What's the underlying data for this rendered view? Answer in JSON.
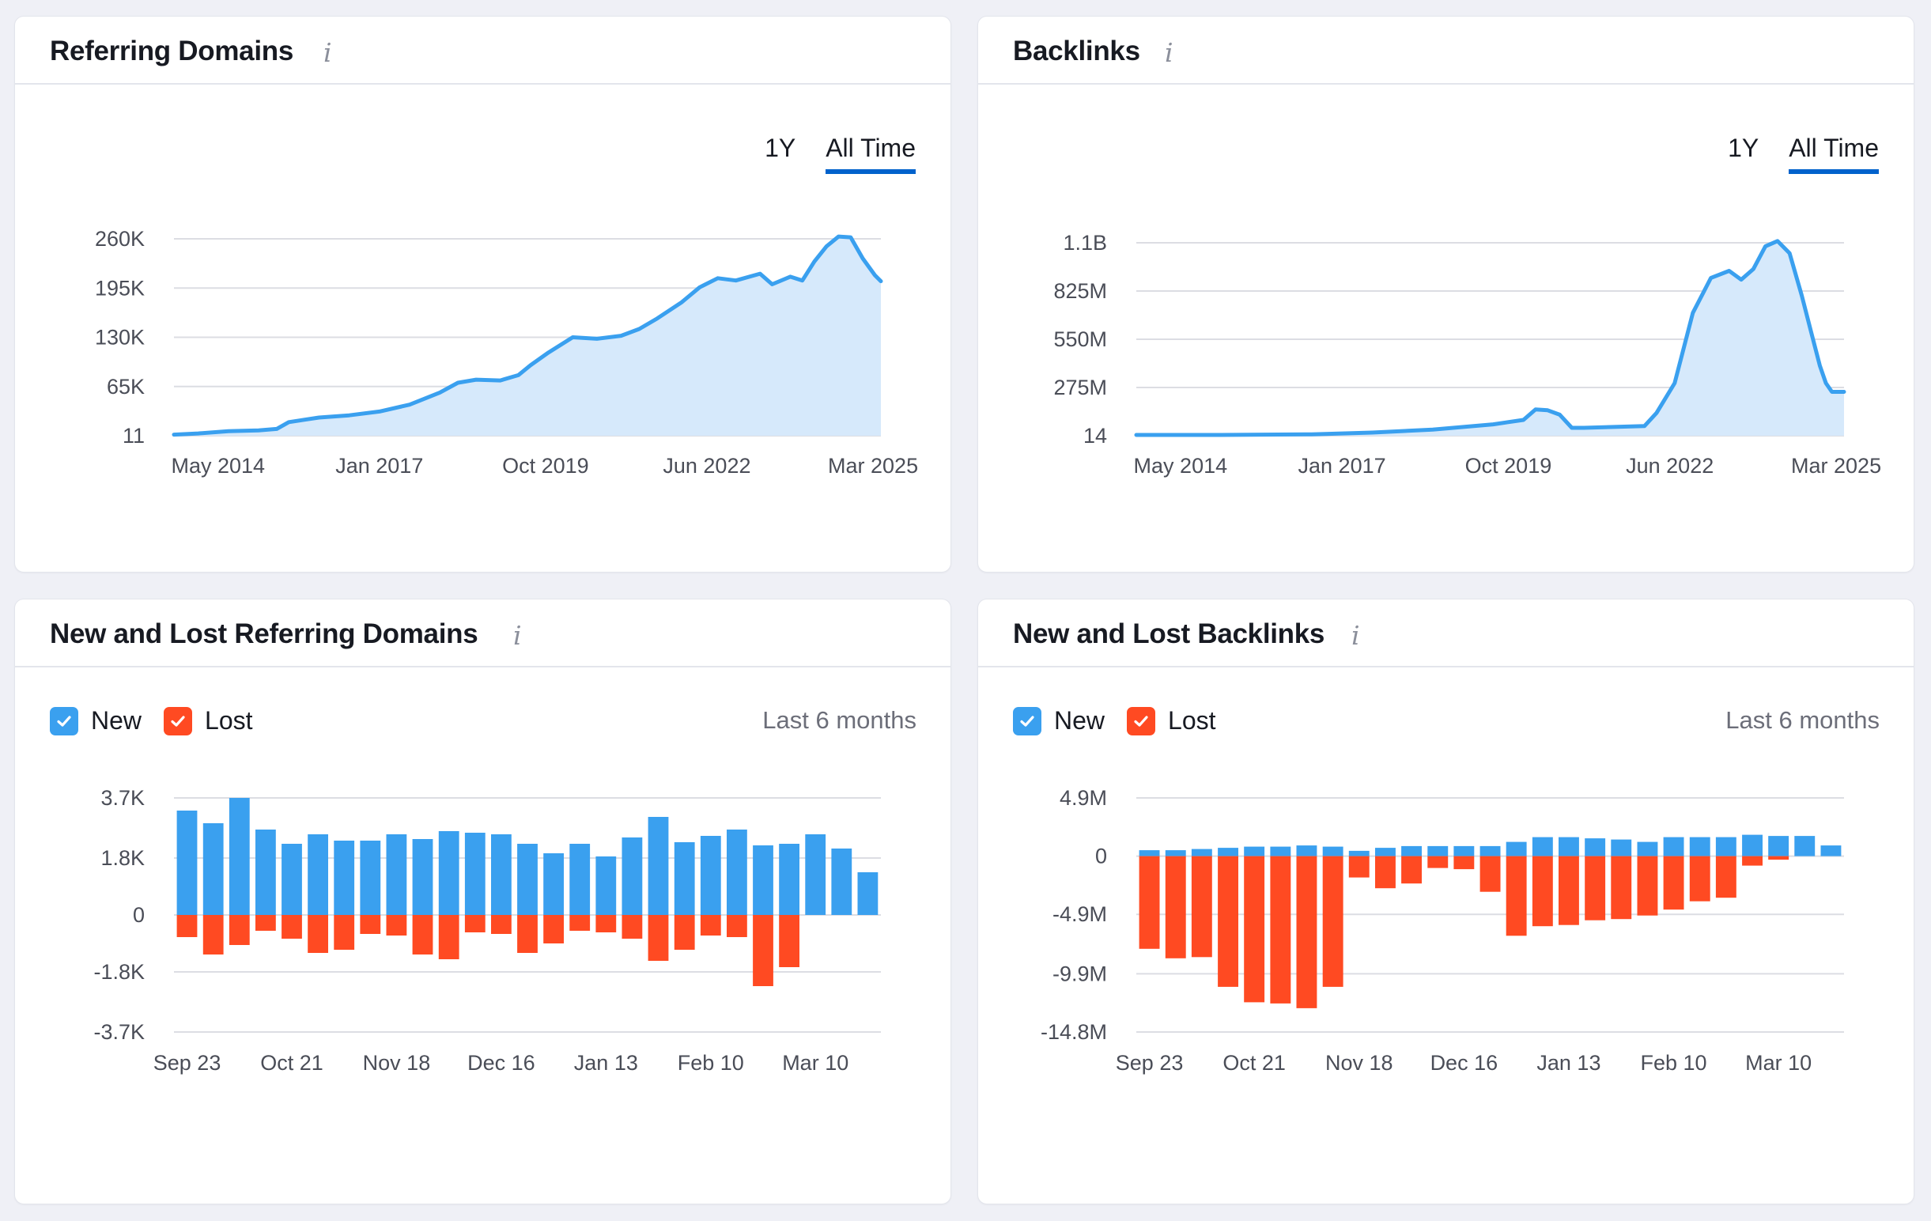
{
  "cards": {
    "rd": {
      "title": "Referring Domains",
      "range_1y": "1Y",
      "range_all": "All Time"
    },
    "bl": {
      "title": "Backlinks",
      "range_1y": "1Y",
      "range_all": "All Time"
    },
    "nlrd": {
      "title": "New and Lost Referring Domains",
      "legend_new": "New",
      "legend_lost": "Lost",
      "period": "Last 6 months"
    },
    "nlbl": {
      "title": "New and Lost Backlinks",
      "legend_new": "New",
      "legend_lost": "Lost",
      "period": "Last 6 months"
    }
  },
  "colors": {
    "line": "#3aa0ef",
    "fill": "#d6e9fb",
    "new": "#3aa0ef",
    "lost": "#ff4a22",
    "grid": "#dcdde3",
    "tab_underline": "#0062cc"
  },
  "icons": {
    "info": "info-icon",
    "checkbox": "checkbox-checked-icon"
  },
  "chart_data": [
    {
      "id": "rd",
      "type": "area",
      "title": "Referring Domains",
      "yticks": [
        11,
        65000,
        130000,
        195000,
        260000
      ],
      "ytick_labels": [
        "11",
        "65K",
        "130K",
        "195K",
        "260K"
      ],
      "ylim": [
        11,
        260000
      ],
      "xticks": [
        "May 2014",
        "Jan 2017",
        "Oct 2019",
        "Jun 2022",
        "Mar 2025"
      ],
      "xtick_positions": [
        2014.33,
        2017.0,
        2019.75,
        2022.42,
        2025.17
      ],
      "xlim": [
        2013.6,
        2025.3
      ],
      "x": [
        2013.6,
        2014.0,
        2014.5,
        2015.0,
        2015.3,
        2015.5,
        2016.0,
        2016.5,
        2017.0,
        2017.5,
        2018.0,
        2018.3,
        2018.6,
        2019.0,
        2019.3,
        2019.5,
        2019.8,
        2020.2,
        2020.6,
        2021.0,
        2021.3,
        2021.6,
        2022.0,
        2022.3,
        2022.6,
        2022.9,
        2023.3,
        2023.5,
        2023.8,
        2024.0,
        2024.2,
        2024.4,
        2024.6,
        2024.8,
        2025.0,
        2025.2,
        2025.3
      ],
      "y": [
        1500,
        3000,
        6000,
        7000,
        9000,
        18000,
        24000,
        27000,
        32000,
        41000,
        57000,
        70000,
        74000,
        73000,
        80000,
        93000,
        110000,
        130000,
        128000,
        132000,
        141000,
        155000,
        176000,
        196000,
        208000,
        205000,
        214000,
        200000,
        210000,
        205000,
        230000,
        250000,
        263000,
        262000,
        234000,
        212000,
        204000
      ]
    },
    {
      "id": "bl",
      "type": "area",
      "title": "Backlinks",
      "yticks": [
        14,
        275000000,
        550000000,
        825000000,
        1100000000
      ],
      "ytick_labels": [
        "14",
        "275M",
        "550M",
        "825M",
        "1.1B"
      ],
      "ylim": [
        14,
        1100000000
      ],
      "xticks": [
        "May 2014",
        "Jan 2017",
        "Oct 2019",
        "Jun 2022",
        "Mar 2025"
      ],
      "xtick_positions": [
        2014.33,
        2017.0,
        2019.75,
        2022.42,
        2025.17
      ],
      "xlim": [
        2013.6,
        2025.3
      ],
      "x": [
        2013.6,
        2015.0,
        2016.5,
        2017.5,
        2018.5,
        2019.5,
        2020.0,
        2020.2,
        2020.4,
        2020.6,
        2020.8,
        2021.0,
        2021.5,
        2022.0,
        2022.2,
        2022.5,
        2022.8,
        2023.1,
        2023.4,
        2023.6,
        2023.8,
        2024.0,
        2024.2,
        2024.4,
        2024.6,
        2024.75,
        2024.9,
        2025.0,
        2025.1,
        2025.3
      ],
      "y": [
        14,
        3000000,
        8000000,
        18000000,
        35000000,
        65000000,
        90000000,
        150000000,
        145000000,
        120000000,
        45000000,
        45000000,
        50000000,
        55000000,
        130000000,
        300000000,
        700000000,
        900000000,
        940000000,
        890000000,
        950000000,
        1080000000,
        1110000000,
        1040000000,
        800000000,
        600000000,
        400000000,
        300000000,
        250000000,
        250000000
      ]
    },
    {
      "id": "nlrd",
      "type": "bar",
      "title": "New and Lost Referring Domains",
      "series_names": [
        "New",
        "Lost"
      ],
      "yticks": [
        3700,
        1800,
        0,
        -1800,
        -3700
      ],
      "ytick_labels": [
        "3.7K",
        "1.8K",
        "0",
        "-1.8K",
        "-3.7K"
      ],
      "ylim": [
        -3700,
        3700
      ],
      "xticks": [
        "Sep 23",
        "Oct 21",
        "Nov 18",
        "Dec 16",
        "Jan 13",
        "Feb 10",
        "Mar 10"
      ],
      "xtick_indices": [
        0,
        4,
        8,
        12,
        16,
        20,
        24
      ],
      "new": [
        3300,
        2900,
        3700,
        2700,
        2250,
        2550,
        2350,
        2350,
        2550,
        2400,
        2650,
        2600,
        2550,
        2250,
        1950,
        2250,
        1850,
        2450,
        3100,
        2300,
        2500,
        2700,
        2200,
        2250,
        2550,
        2100,
        1350
      ],
      "lost": [
        -700,
        -1250,
        -950,
        -500,
        -750,
        -1200,
        -1100,
        -600,
        -650,
        -1250,
        -1400,
        -550,
        -600,
        -1200,
        -900,
        -500,
        -550,
        -750,
        -1450,
        -1100,
        -650,
        -700,
        -2250,
        -1650,
        0,
        0,
        0
      ]
    },
    {
      "id": "nlbl",
      "type": "bar",
      "title": "New and Lost Backlinks",
      "series_names": [
        "New",
        "Lost"
      ],
      "yticks": [
        4900000,
        0,
        -4900000,
        -9900000,
        -14800000
      ],
      "ytick_labels": [
        "4.9M",
        "0",
        "-4.9M",
        "-9.9M",
        "-14.8M"
      ],
      "ylim": [
        -14800000,
        4900000
      ],
      "xticks": [
        "Sep 23",
        "Oct 21",
        "Nov 18",
        "Dec 16",
        "Jan 13",
        "Feb 10",
        "Mar 10"
      ],
      "xtick_indices": [
        0,
        4,
        8,
        12,
        16,
        20,
        24
      ],
      "new": [
        500000,
        500000,
        600000,
        700000,
        800000,
        800000,
        900000,
        800000,
        450000,
        700000,
        850000,
        850000,
        850000,
        850000,
        1200000,
        1600000,
        1600000,
        1500000,
        1400000,
        1200000,
        1600000,
        1600000,
        1600000,
        1800000,
        1700000,
        1700000,
        900000
      ],
      "lost": [
        -7800000,
        -8600000,
        -8500000,
        -11000000,
        -12300000,
        -12400000,
        -12800000,
        -11000000,
        -1800000,
        -2700000,
        -2300000,
        -1000000,
        -1100000,
        -3000000,
        -6700000,
        -5900000,
        -5800000,
        -5400000,
        -5300000,
        -5000000,
        -4500000,
        -3800000,
        -3500000,
        -800000,
        -300000,
        0,
        0
      ]
    }
  ]
}
